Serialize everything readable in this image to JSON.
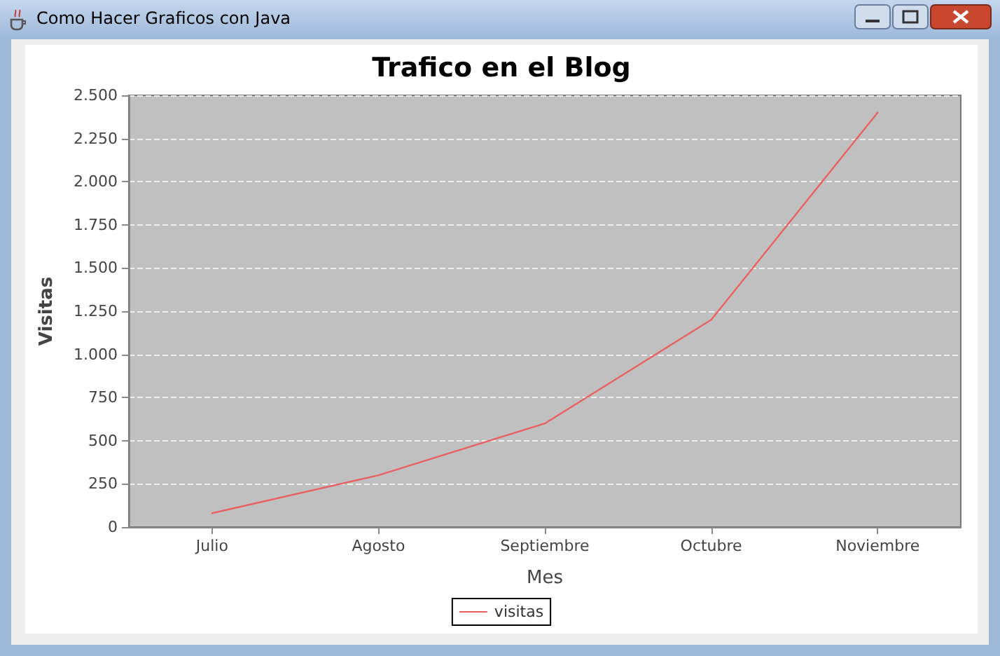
{
  "chart_data": {
    "type": "line",
    "title": "Trafico en el Blog",
    "xlabel": "Mes",
    "ylabel": "Visitas",
    "annotations": [
      "Como Hacer Graficos con Java"
    ],
    "categories": [
      "Julio",
      "Agosto",
      "Septiembre",
      "Octubre",
      "Noviembre"
    ],
    "series": [
      {
        "name": "visitas",
        "color": "#e8605f",
        "values": [
          80,
          300,
          600,
          1200,
          2400
        ]
      }
    ],
    "ylim": [
      0,
      2500
    ],
    "yticks": [
      {
        "value": 0,
        "label": "0"
      },
      {
        "value": 250,
        "label": "250"
      },
      {
        "value": 500,
        "label": "500"
      },
      {
        "value": 750,
        "label": "750"
      },
      {
        "value": 1000,
        "label": "1.000"
      },
      {
        "value": 1250,
        "label": "1.250"
      },
      {
        "value": 1500,
        "label": "1.500"
      },
      {
        "value": 1750,
        "label": "1.750"
      },
      {
        "value": 2000,
        "label": "2.000"
      },
      {
        "value": 2250,
        "label": "2.250"
      },
      {
        "value": 2500,
        "label": "2.500"
      }
    ],
    "grid": "y",
    "legend": "bottom",
    "marker": "none",
    "line_style": "solid"
  }
}
